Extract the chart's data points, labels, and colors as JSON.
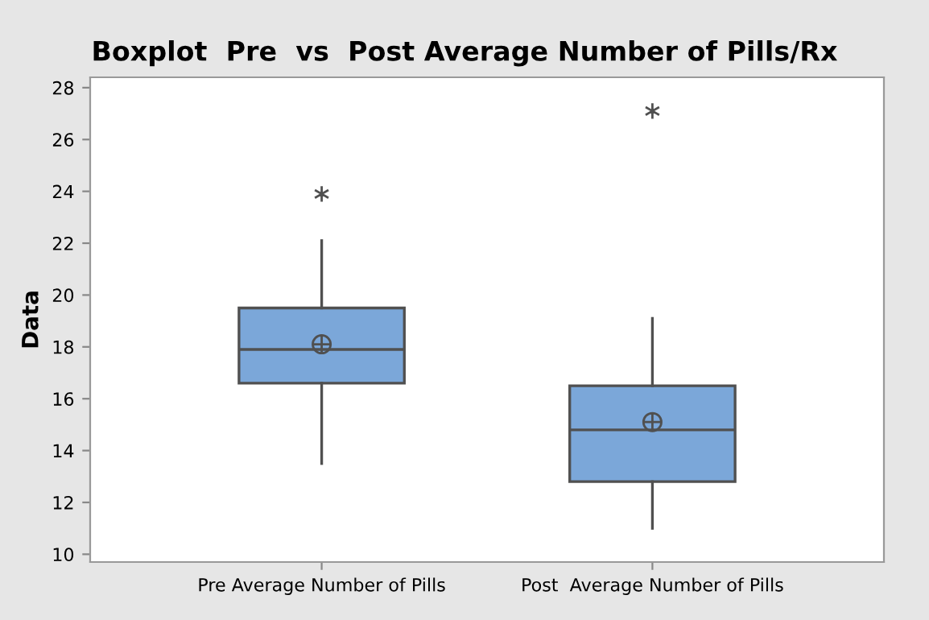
{
  "chart_data": {
    "type": "box",
    "title": "Boxplot  Pre  vs  Post Average Number of Pills/Rx",
    "ylabel": "Data",
    "categories": [
      "Pre Average Number of Pills",
      "Post  Average Number of Pills"
    ],
    "color": "#7ba7d9",
    "boxes": [
      {
        "low": 13.5,
        "q1": 16.6,
        "median": 17.9,
        "q3": 19.5,
        "high": 22.1,
        "mean": 18.1,
        "outliers": [
          23.9
        ]
      },
      {
        "low": 11.0,
        "q1": 12.8,
        "median": 14.8,
        "q3": 16.5,
        "high": 19.1,
        "mean": 15.1,
        "outliers": [
          27.1
        ]
      }
    ],
    "ylim": [
      9.7,
      28.4
    ],
    "yticks": [
      10,
      12,
      14,
      16,
      18,
      20,
      22,
      24,
      26,
      28
    ],
    "grid": false,
    "legend": false
  }
}
